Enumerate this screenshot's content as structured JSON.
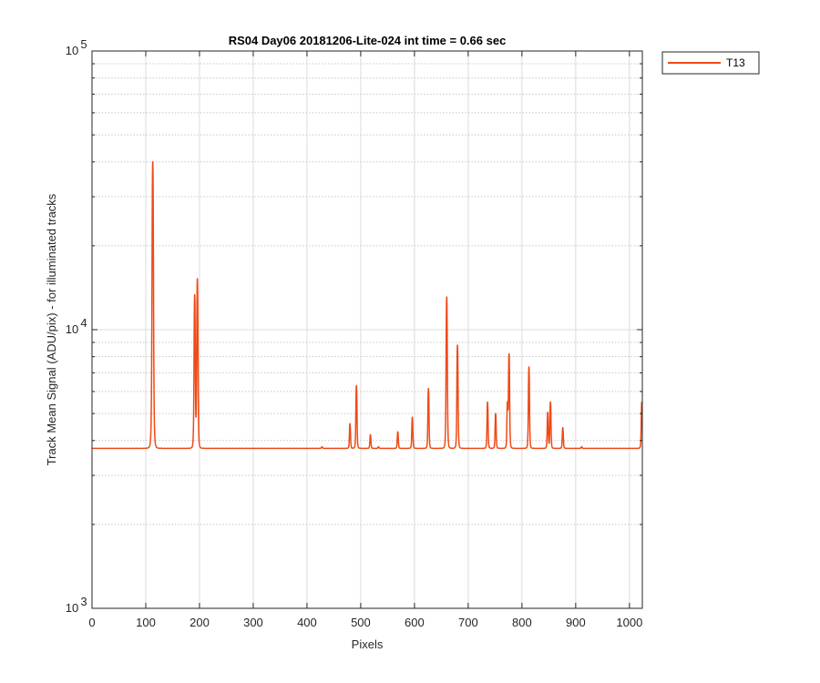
{
  "chart_data": {
    "type": "line",
    "title": "RS04 Day06 20181206-Lite-024 int time = 0.66 sec",
    "xlabel": "Pixels",
    "ylabel": "Track Mean Signal (ADU/pix) - for illuminated tracks",
    "xlim": [
      0,
      1024
    ],
    "ylim": [
      1000,
      100000
    ],
    "yscale": "log",
    "grid": true,
    "x_ticks": [
      0,
      100,
      200,
      300,
      400,
      500,
      600,
      700,
      800,
      900,
      1000
    ],
    "x_tick_labels": [
      "0",
      "100",
      "200",
      "300",
      "400",
      "500",
      "600",
      "700",
      "800",
      "900",
      "1000"
    ],
    "y_ticks": [
      {
        "value": 1000,
        "base": "10",
        "exp": "3"
      },
      {
        "value": 10000,
        "base": "10",
        "exp": "4"
      },
      {
        "value": 100000,
        "base": "10",
        "exp": "5"
      }
    ],
    "legend_placement": "outside-top-right",
    "series": [
      {
        "name": "T13",
        "color": "#f04a16",
        "baseline": 3750,
        "peaks": [
          {
            "x": 113,
            "y": 40000
          },
          {
            "x": 191,
            "y": 13300
          },
          {
            "x": 196,
            "y": 15200
          },
          {
            "x": 428,
            "y": 3800
          },
          {
            "x": 480,
            "y": 4600
          },
          {
            "x": 492,
            "y": 6300
          },
          {
            "x": 518,
            "y": 4200
          },
          {
            "x": 533,
            "y": 3800
          },
          {
            "x": 569,
            "y": 4300
          },
          {
            "x": 596,
            "y": 4850
          },
          {
            "x": 626,
            "y": 6150
          },
          {
            "x": 660,
            "y": 13100
          },
          {
            "x": 680,
            "y": 8800
          },
          {
            "x": 736,
            "y": 5500
          },
          {
            "x": 751,
            "y": 5000
          },
          {
            "x": 773,
            "y": 5400
          },
          {
            "x": 776,
            "y": 8150
          },
          {
            "x": 813,
            "y": 7350
          },
          {
            "x": 848,
            "y": 5050
          },
          {
            "x": 853,
            "y": 5500
          },
          {
            "x": 876,
            "y": 4450
          },
          {
            "x": 911,
            "y": 3800
          },
          {
            "x": 1023,
            "y": 5500
          }
        ]
      }
    ]
  }
}
